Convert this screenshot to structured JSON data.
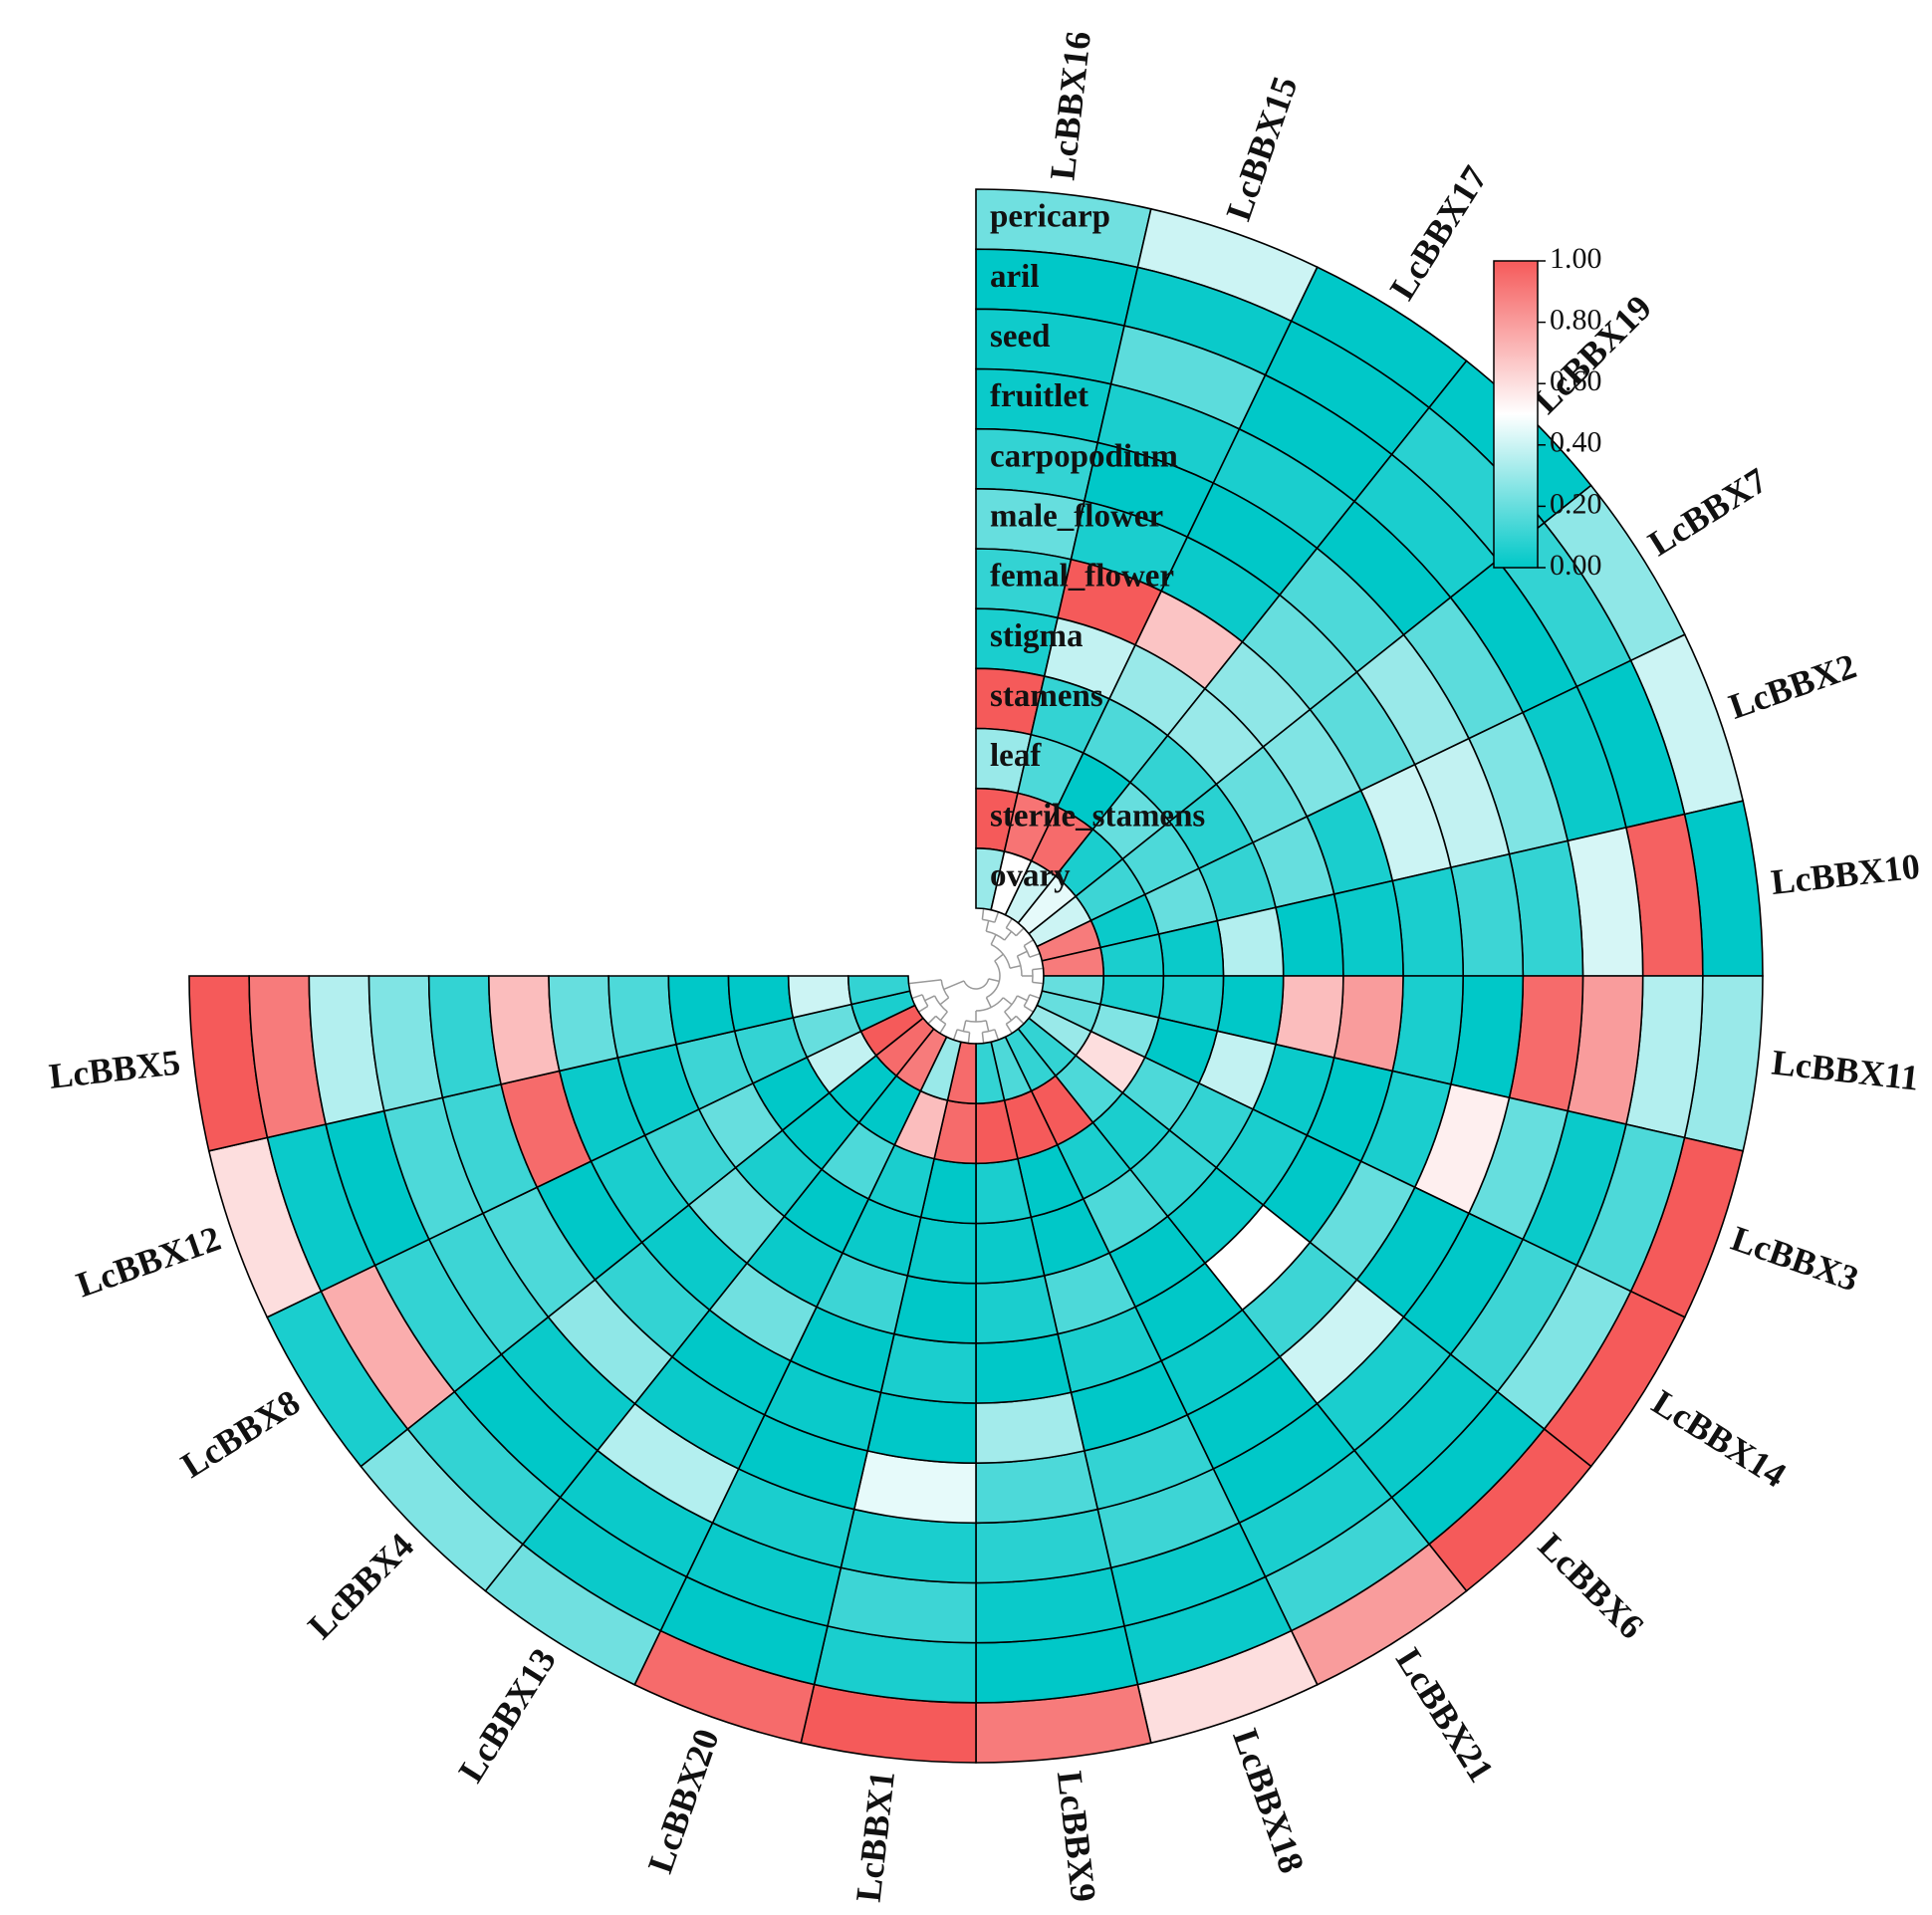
{
  "chart_data": {
    "type": "heatmap",
    "layout": "circular",
    "title": "",
    "genes": [
      "LcBBX16",
      "LcBBX15",
      "LcBBX17",
      "LcBBX19",
      "LcBBX7",
      "LcBBX2",
      "LcBBX10",
      "LcBBX11",
      "LcBBX3",
      "LcBBX14",
      "LcBBX6",
      "LcBBX21",
      "LcBBX18",
      "LcBBX9",
      "LcBBX1",
      "LcBBX20",
      "LcBBX13",
      "LcBBX4",
      "LcBBX8",
      "LcBBX12",
      "LcBBX5"
    ],
    "tissues": [
      "pericarp",
      "aril",
      "seed",
      "fruitlet",
      "carpopodium",
      "male_flower",
      "femal_flower",
      "stigma",
      "stamens",
      "leaf",
      "sterile_stamens",
      "ovary"
    ],
    "values": [
      [
        0.22,
        0.0,
        0.03,
        0.02,
        0.1,
        0.2,
        0.1,
        0.05,
        1.0,
        0.3,
        1.0,
        0.3
      ],
      [
        0.4,
        0.02,
        0.18,
        0.05,
        0.0,
        0.05,
        1.0,
        0.38,
        0.1,
        0.15,
        0.92,
        0.5
      ],
      [
        0.0,
        0.0,
        0.0,
        0.05,
        0.0,
        0.02,
        0.68,
        0.3,
        0.15,
        0.0,
        0.95,
        0.4
      ],
      [
        0.0,
        0.08,
        0.05,
        0.0,
        0.15,
        0.2,
        0.28,
        0.3,
        0.1,
        0.2,
        0.05,
        0.45
      ],
      [
        0.28,
        0.1,
        0.0,
        0.18,
        0.3,
        0.18,
        0.25,
        0.2,
        0.08,
        0.15,
        0.12,
        0.4
      ],
      [
        0.4,
        0.0,
        0.02,
        0.25,
        0.38,
        0.4,
        0.05,
        0.2,
        0.1,
        0.2,
        0.02,
        0.9
      ],
      [
        0.0,
        0.98,
        0.42,
        0.1,
        0.12,
        0.05,
        0.02,
        0.0,
        0.35,
        0.02,
        0.05,
        0.9
      ],
      [
        0.3,
        0.35,
        0.8,
        0.95,
        0.0,
        0.05,
        0.8,
        0.7,
        0.0,
        0.05,
        0.05,
        0.2
      ],
      [
        1.0,
        0.15,
        0.02,
        0.2,
        0.55,
        0.05,
        0.0,
        0.02,
        0.38,
        0.0,
        0.25,
        0.2
      ],
      [
        1.0,
        0.25,
        0.12,
        0.0,
        0.0,
        0.2,
        0.0,
        0.05,
        0.1,
        0.15,
        0.6,
        0.3
      ],
      [
        1.0,
        0.0,
        0.02,
        0.05,
        0.4,
        0.12,
        0.5,
        0.02,
        0.1,
        0.05,
        0.15,
        0.1
      ],
      [
        0.8,
        0.12,
        0.05,
        0.0,
        0.0,
        0.02,
        0.0,
        0.0,
        0.15,
        0.05,
        1.0,
        0.1
      ],
      [
        0.6,
        0.02,
        0.02,
        0.12,
        0.1,
        0.0,
        0.05,
        0.15,
        0.0,
        0.0,
        1.0,
        0.15
      ],
      [
        0.9,
        0.0,
        0.02,
        0.08,
        0.15,
        0.32,
        0.0,
        0.05,
        0.02,
        0.05,
        1.0,
        0.1
      ],
      [
        1.0,
        0.05,
        0.12,
        0.05,
        0.45,
        0.0,
        0.05,
        0.0,
        0.02,
        0.0,
        0.95,
        0.95
      ],
      [
        0.95,
        0.0,
        0.02,
        0.05,
        0.0,
        0.02,
        0.0,
        0.12,
        0.02,
        0.05,
        0.7,
        0.3
      ],
      [
        0.22,
        0.02,
        0.02,
        0.35,
        0.02,
        0.0,
        0.22,
        0.02,
        0.0,
        0.15,
        0.0,
        0.9
      ],
      [
        0.25,
        0.1,
        0.0,
        0.02,
        0.28,
        0.1,
        0.02,
        0.22,
        0.05,
        0.0,
        0.0,
        0.95
      ],
      [
        0.05,
        0.75,
        0.1,
        0.12,
        0.15,
        0.0,
        0.05,
        0.12,
        0.2,
        0.0,
        0.38,
        1.0
      ],
      [
        0.6,
        0.02,
        0.0,
        0.15,
        0.12,
        0.95,
        0.02,
        0.02,
        0.12,
        0.1,
        0.2,
        0.05
      ],
      [
        1.0,
        0.9,
        0.35,
        0.25,
        0.1,
        0.7,
        0.2,
        0.15,
        0.0,
        0.0,
        0.4,
        0.1
      ]
    ],
    "colorscale": {
      "min": 0.0,
      "mid": 0.5,
      "max": 1.0,
      "low": "#00c8c8",
      "middle": "#ffffff",
      "high": "#f55a5a"
    },
    "colorbar_ticks": [
      "0.00",
      "0.20",
      "0.40",
      "0.60",
      "0.80",
      "1.00"
    ],
    "angular_span_deg": 270,
    "dendrogram": "inner"
  }
}
